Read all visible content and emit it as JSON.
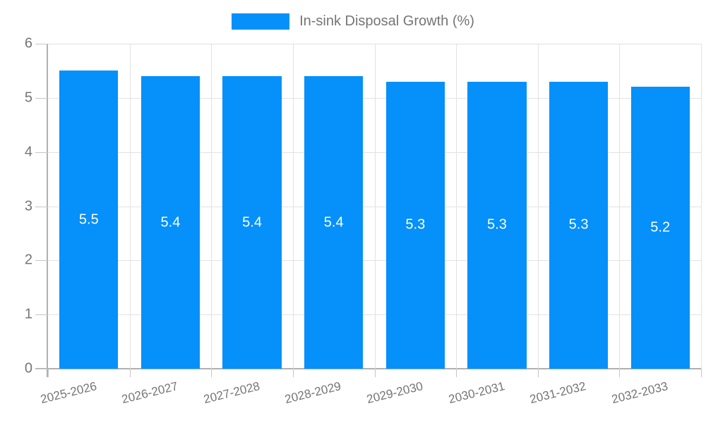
{
  "legend": {
    "label": "In-sink Disposal Growth (%)"
  },
  "chart_data": {
    "type": "bar",
    "title": "In-sink Disposal Growth (%)",
    "categories": [
      "2025-2026",
      "2026-2027",
      "2027-2028",
      "2028-2029",
      "2029-2030",
      "2030-2031",
      "2031-2032",
      "2032-2033"
    ],
    "values": [
      5.5,
      5.4,
      5.4,
      5.4,
      5.3,
      5.3,
      5.3,
      5.2
    ],
    "xlabel": "",
    "ylabel": "",
    "ylim": [
      0,
      6
    ],
    "yticks": [
      0,
      1,
      2,
      3,
      4,
      5,
      6
    ],
    "grid": true,
    "legend_position": "top",
    "value_labels": "inside-center",
    "value_label_format": "1-decimal"
  },
  "style": {
    "bar_color": "#0590fa",
    "value_label_color": "#ffffff",
    "axis_color": "#b0b0b0",
    "grid_color": "#e2e2e2",
    "tick_color": "#c6c6c6",
    "label_color": "#757575"
  }
}
